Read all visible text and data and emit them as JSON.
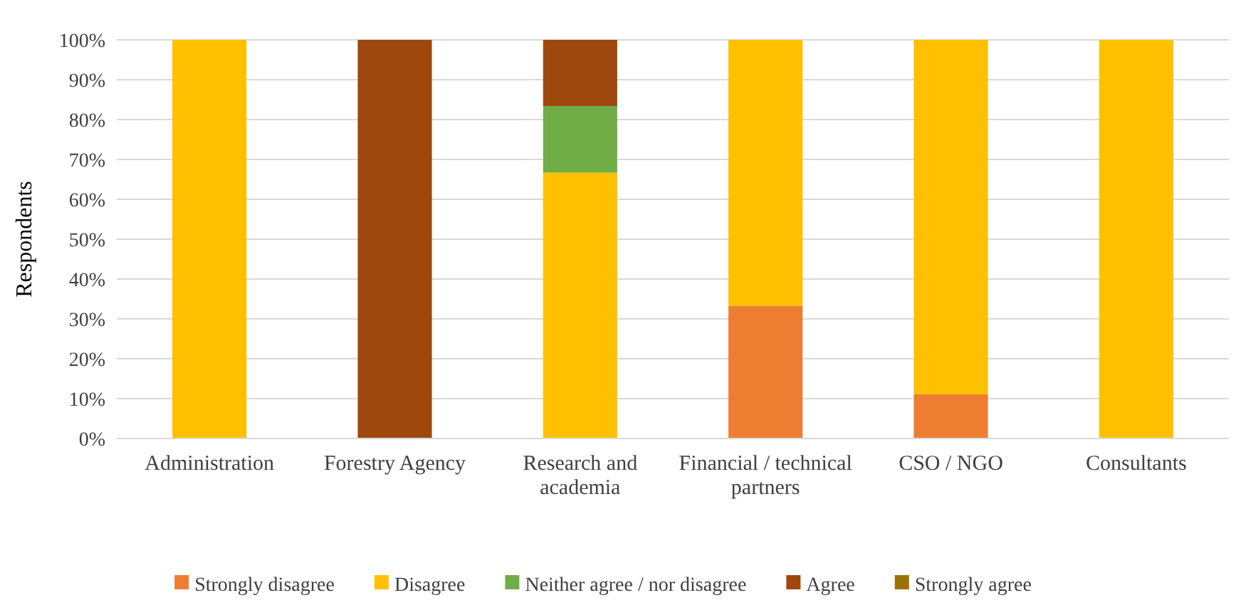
{
  "chart_data": {
    "type": "bar",
    "stacked": true,
    "ylabel": "Respondents",
    "categories": [
      "Administration",
      "Forestry Agency",
      "Research and academia",
      "Financial / technical partners",
      "CSO / NGO",
      "Consultants"
    ],
    "series": [
      {
        "name": "Strongly disagree",
        "color": "#ed7d31",
        "values": [
          0,
          0,
          0,
          33.3,
          11.1,
          0
        ]
      },
      {
        "name": "Disagree",
        "color": "#ffc000",
        "values": [
          100,
          0,
          66.7,
          66.7,
          88.9,
          100
        ]
      },
      {
        "name": "Neither agree / nor disagree",
        "color": "#70ad47",
        "values": [
          0,
          0,
          16.7,
          0,
          0,
          0
        ]
      },
      {
        "name": "Agree",
        "color": "#9e480e",
        "values": [
          0,
          100,
          16.6,
          0,
          0,
          0
        ]
      },
      {
        "name": "Strongly agree",
        "color": "#997300",
        "values": [
          0,
          0,
          0,
          0,
          0,
          0
        ]
      }
    ],
    "ylim": [
      0,
      100
    ],
    "yticks": [
      {
        "value": 0,
        "label": "0%"
      },
      {
        "value": 10,
        "label": "10%"
      },
      {
        "value": 20,
        "label": "20%"
      },
      {
        "value": 30,
        "label": "30%"
      },
      {
        "value": 40,
        "label": "40%"
      },
      {
        "value": 50,
        "label": "50%"
      },
      {
        "value": 60,
        "label": "60%"
      },
      {
        "value": 70,
        "label": "70%"
      },
      {
        "value": 80,
        "label": "80%"
      },
      {
        "value": 90,
        "label": "90%"
      },
      {
        "value": 100,
        "label": "100%"
      }
    ],
    "grid": "y",
    "legend": "bottom"
  }
}
